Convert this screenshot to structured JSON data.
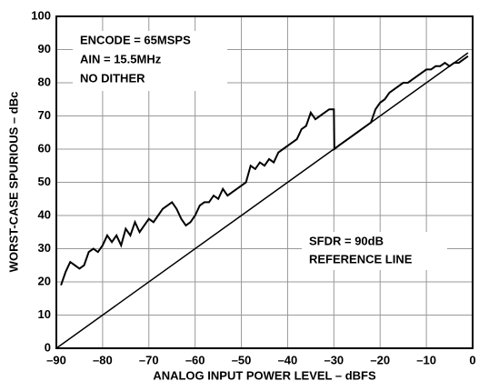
{
  "chart_data": {
    "type": "line",
    "xlabel": "ANALOG INPUT POWER LEVEL –  dBFS",
    "ylabel": "WORST-CASE SPURIOUS – dBc",
    "annotations": [
      "ENCODE = 65MSPS",
      "AIN = 15.5MHz",
      "NO DITHER",
      "SFDR = 90dB",
      "REFERENCE LINE"
    ],
    "xlim": [
      -90,
      0
    ],
    "ylim": [
      0,
      100
    ],
    "xticks": [
      {
        "value": -90,
        "label": "–90"
      },
      {
        "value": -80,
        "label": "–80"
      },
      {
        "value": -70,
        "label": "–70"
      },
      {
        "value": -60,
        "label": "–60"
      },
      {
        "value": -50,
        "label": "–50"
      },
      {
        "value": -40,
        "label": "–40"
      },
      {
        "value": -30,
        "label": "–30"
      },
      {
        "value": -20,
        "label": "–20"
      },
      {
        "value": -10,
        "label": "–10"
      },
      0
    ],
    "yticks": [
      0,
      10,
      20,
      30,
      40,
      50,
      60,
      70,
      80,
      90,
      100
    ],
    "grid": true,
    "series": [
      {
        "color": "#000000",
        "x": [
          -89,
          -88,
          -87,
          -86,
          -85,
          -84,
          -83,
          -82,
          -81,
          -80,
          -79,
          -78,
          -77,
          -76,
          -75,
          -74,
          -73,
          -72,
          -71,
          -70,
          -69,
          -68,
          -67,
          -66,
          -65,
          -64,
          -63,
          -62,
          -61,
          -60,
          -59,
          -58,
          -57,
          -56,
          -55,
          -54,
          -53,
          -52,
          -51,
          -50,
          -49,
          -48,
          -47,
          -46,
          -45,
          -44,
          -43,
          -42,
          -41,
          -40,
          -39,
          -38,
          -37,
          -36,
          -35,
          -34,
          -33,
          -32,
          -31,
          -30,
          -29.9,
          -29,
          -28,
          -27,
          -26,
          -25,
          -24,
          -23,
          -22,
          -21,
          -20,
          -19,
          -18,
          -17,
          -16,
          -15,
          -14,
          -13,
          -12,
          -11,
          -10,
          -9,
          -8,
          -7,
          -6,
          -5,
          -4,
          -3,
          -2,
          -1
        ],
        "values": [
          19,
          23,
          26,
          25,
          24,
          25,
          29,
          30,
          29,
          31,
          34,
          32,
          34,
          31,
          36,
          34,
          38,
          35,
          37,
          39,
          38,
          40,
          42,
          43,
          44,
          42,
          39,
          37,
          38,
          40,
          43,
          44,
          44,
          46,
          45,
          48,
          46,
          47,
          48,
          49,
          50,
          55,
          54,
          56,
          55,
          57,
          56,
          59,
          60,
          61,
          62,
          63,
          66,
          67,
          71,
          69,
          70,
          71,
          72,
          72,
          60,
          61,
          62,
          63,
          64,
          65,
          66,
          67,
          68,
          72,
          74,
          75,
          77,
          78,
          79,
          80,
          80,
          81,
          82,
          83,
          84,
          84,
          85,
          85,
          86,
          85,
          86,
          86,
          87,
          88
        ]
      },
      {
        "color": "#000000",
        "x": [
          -90,
          -1
        ],
        "values": [
          0,
          89
        ]
      }
    ]
  }
}
